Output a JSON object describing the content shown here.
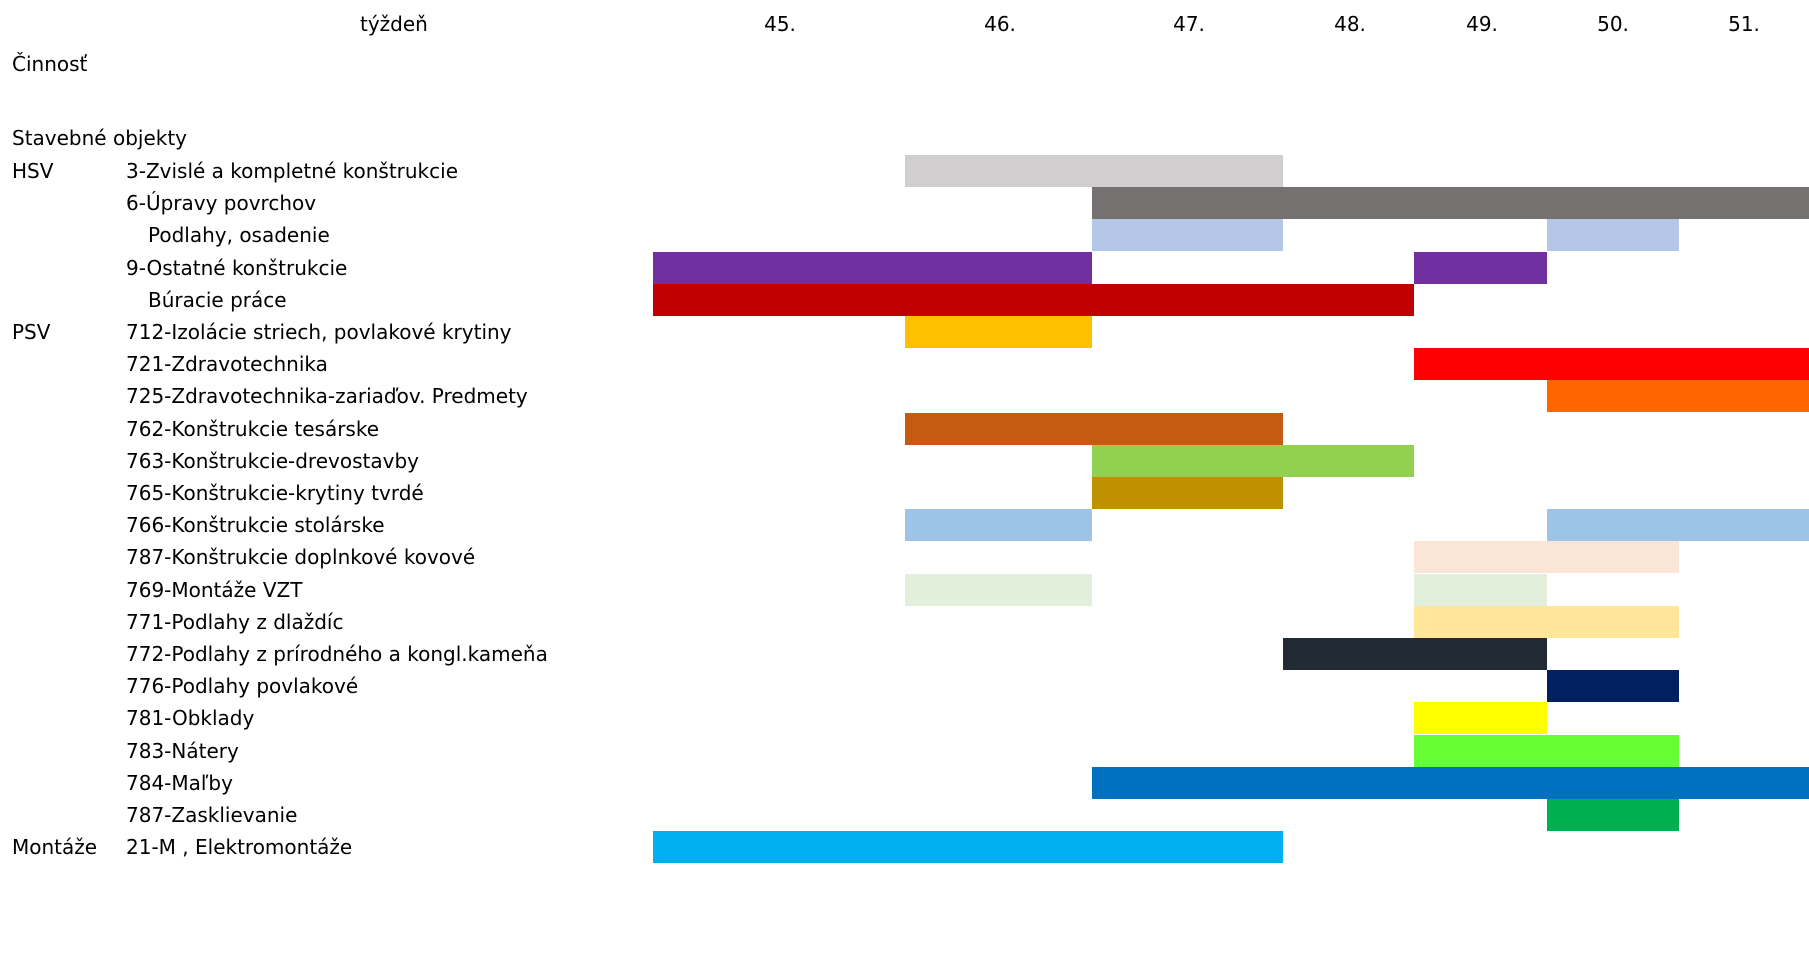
{
  "chart_data": {
    "type": "gantt",
    "week_header_label": "týždeň",
    "activity_header_label": "Činnosť",
    "section_label": "Stavebné objekty",
    "weeks": [
      "45.",
      "46.",
      "47.",
      "48.",
      "49.",
      "50.",
      "51."
    ],
    "rows": [
      {
        "group": "HSV",
        "label": "3-Zvislé a kompletné konštrukcie",
        "indent": 0,
        "bars": [
          {
            "start": 46.0,
            "end": 47.68,
            "color": "#d0cece"
          }
        ]
      },
      {
        "group": "",
        "label": "6-Úpravy povrchov",
        "indent": 0,
        "bars": [
          {
            "start": 46.83,
            "end": 52.2,
            "color": "#767171"
          }
        ]
      },
      {
        "group": "",
        "label": "Podlahy, osadenie",
        "indent": 1,
        "bars": [
          {
            "start": 46.83,
            "end": 47.68,
            "color": "#b4c7e7"
          },
          {
            "start": 49.52,
            "end": 50.49,
            "color": "#b4c7e7"
          }
        ]
      },
      {
        "group": "",
        "label": "9-Ostatné konštrukcie",
        "indent": 0,
        "bars": [
          {
            "start": 44.68,
            "end": 46.83,
            "color": "#7030a0"
          },
          {
            "start": 48.52,
            "end": 49.52,
            "color": "#7030a0"
          }
        ]
      },
      {
        "group": "",
        "label": "Búracie práce",
        "indent": 1,
        "bars": [
          {
            "start": 44.68,
            "end": 48.52,
            "color": "#c00000"
          }
        ]
      },
      {
        "group": "PSV",
        "label": "712-Izolácie striech, povlakové krytiny",
        "indent": 0,
        "bars": [
          {
            "start": 46.0,
            "end": 46.83,
            "color": "#ffc000"
          }
        ]
      },
      {
        "group": "",
        "label": "721-Zdravotechnika",
        "indent": 0,
        "bars": [
          {
            "start": 48.52,
            "end": 52.2,
            "color": "#ff0000"
          }
        ]
      },
      {
        "group": "",
        "label": "725-Zdravotechnika-zariaďov. Predmety",
        "indent": 0,
        "bars": [
          {
            "start": 49.52,
            "end": 52.2,
            "color": "#ff6600"
          }
        ]
      },
      {
        "group": "",
        "label": "762-Konštrukcie tesárske",
        "indent": 0,
        "bars": [
          {
            "start": 46.0,
            "end": 47.68,
            "color": "#c55a11"
          }
        ]
      },
      {
        "group": "",
        "label": "763-Konštrukcie-drevostavby",
        "indent": 0,
        "bars": [
          {
            "start": 46.83,
            "end": 48.52,
            "color": "#92d050"
          }
        ]
      },
      {
        "group": "",
        "label": "765-Konštrukcie-krytiny tvrdé",
        "indent": 0,
        "bars": [
          {
            "start": 46.83,
            "end": 47.68,
            "color": "#bf9000"
          }
        ]
      },
      {
        "group": "",
        "label": "766-Konštrukcie stolárske",
        "indent": 0,
        "bars": [
          {
            "start": 46.0,
            "end": 46.83,
            "color": "#9dc3e6"
          },
          {
            "start": 49.52,
            "end": 52.2,
            "color": "#9dc3e6"
          }
        ]
      },
      {
        "group": "",
        "label": "787-Konštrukcie doplnkové kovové",
        "indent": 0,
        "bars": [
          {
            "start": 48.52,
            "end": 50.49,
            "color": "#fbe5d6"
          }
        ]
      },
      {
        "group": "",
        "label": "769-Montáže VZT",
        "indent": 0,
        "bars": [
          {
            "start": 46.0,
            "end": 46.83,
            "color": "#e2efda"
          },
          {
            "start": 48.52,
            "end": 49.52,
            "color": "#e2efda"
          }
        ]
      },
      {
        "group": "",
        "label": "771-Podlahy z dlaždíc",
        "indent": 0,
        "bars": [
          {
            "start": 48.52,
            "end": 50.49,
            "color": "#ffe699"
          }
        ]
      },
      {
        "group": "",
        "label": "772-Podlahy z prírodného a kongl.kameňa",
        "indent": 0,
        "bars": [
          {
            "start": 47.68,
            "end": 49.52,
            "color": "#222a35"
          }
        ]
      },
      {
        "group": "",
        "label": "776-Podlahy povlakové",
        "indent": 0,
        "bars": [
          {
            "start": 49.52,
            "end": 50.49,
            "color": "#002060"
          }
        ]
      },
      {
        "group": "",
        "label": "781-Obklady",
        "indent": 0,
        "bars": [
          {
            "start": 48.52,
            "end": 49.52,
            "color": "#ffff00"
          }
        ]
      },
      {
        "group": "",
        "label": "783-Nátery",
        "indent": 0,
        "bars": [
          {
            "start": 48.52,
            "end": 50.49,
            "color": "#66ff33"
          }
        ]
      },
      {
        "group": "",
        "label": "784-Maľby",
        "indent": 0,
        "bars": [
          {
            "start": 46.83,
            "end": 52.2,
            "color": "#0070c0"
          }
        ]
      },
      {
        "group": "",
        "label": "787-Zasklievanie",
        "indent": 0,
        "bars": [
          {
            "start": 49.52,
            "end": 50.49,
            "color": "#00b050"
          }
        ]
      },
      {
        "group": "Montáže",
        "label": "21-M , Elektromontáže",
        "indent": 0,
        "bars": [
          {
            "start": 44.68,
            "end": 47.68,
            "color": "#00b0f0"
          }
        ]
      }
    ]
  }
}
